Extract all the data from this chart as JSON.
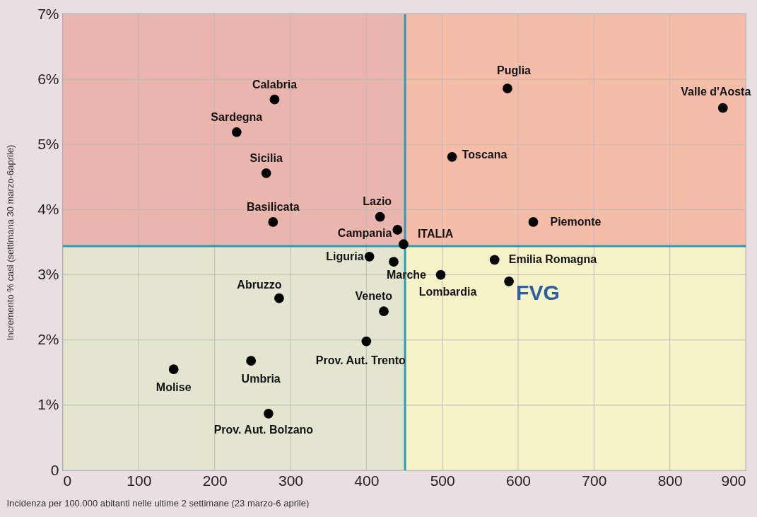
{
  "chart_data": {
    "type": "scatter",
    "xlabel": "Incidenza per 100.000 abitanti  nelle ultime 2 settimane (23 marzo-6 aprile)",
    "ylabel": "Incremento % casi (settimana 30 marzo-6aprile)",
    "x": [
      279,
      229,
      268,
      277,
      418,
      441,
      449,
      404,
      436,
      285,
      423,
      400,
      146,
      248,
      271,
      586,
      870,
      513,
      620,
      569,
      498,
      588
    ],
    "values": [
      5.69,
      5.19,
      4.56,
      3.81,
      3.89,
      3.69,
      3.47,
      3.28,
      3.2,
      2.64,
      2.44,
      1.98,
      1.55,
      1.68,
      0.87,
      5.86,
      5.56,
      4.81,
      3.81,
      3.23,
      3.0,
      2.9
    ],
    "color": "#000000",
    "marker": "circle",
    "xlim": [
      0,
      900
    ],
    "xticks": [
      0,
      100,
      200,
      300,
      400,
      500,
      600,
      700,
      800,
      900
    ],
    "ylim": [
      0,
      7
    ],
    "yticks": [
      {
        "value": 0,
        "label": "0"
      },
      {
        "value": 1,
        "label": "1%"
      },
      {
        "value": 2,
        "label": "2%"
      },
      {
        "value": 3,
        "label": "3%"
      },
      {
        "value": 4,
        "label": "4%"
      },
      {
        "value": 5,
        "label": "5%"
      },
      {
        "value": 6,
        "label": "6%"
      },
      {
        "value": 7,
        "label": "7%"
      }
    ],
    "grid": true,
    "bands": [
      {
        "axis": "x",
        "from": 0,
        "to": 451,
        "color": "#e3e5cf"
      },
      {
        "axis": "x",
        "from": 451,
        "to": 900,
        "color": "#f7f3c8"
      },
      {
        "axis": "y",
        "from": 3.44,
        "to": 7,
        "color": "#f27a80"
      }
    ],
    "ref_lines": [
      {
        "axis": "x",
        "value": 451,
        "color": "#2a9bb5"
      },
      {
        "axis": "y",
        "value": 3.44,
        "color": "#2a9bb5"
      }
    ],
    "annotations": [
      {
        "text": "Calabria",
        "x": 279,
        "y": 5.69
      },
      {
        "text": "Sardegna",
        "x": 229,
        "y": 5.19
      },
      {
        "text": "Sicilia",
        "x": 268,
        "y": 4.56
      },
      {
        "text": "Basilicata",
        "x": 277,
        "y": 3.81
      },
      {
        "text": "Lazio",
        "x": 418,
        "y": 3.89
      },
      {
        "text": "Campania",
        "x": 441,
        "y": 3.69
      },
      {
        "text": "ITALIA",
        "x": 449,
        "y": 3.47
      },
      {
        "text": "Liguria",
        "x": 404,
        "y": 3.28
      },
      {
        "text": "Marche",
        "x": 436,
        "y": 3.2
      },
      {
        "text": "Abruzzo",
        "x": 285,
        "y": 2.64
      },
      {
        "text": "Veneto",
        "x": 423,
        "y": 2.44
      },
      {
        "text": "Prov. Aut. Trento",
        "x": 400,
        "y": 1.98
      },
      {
        "text": "Molise",
        "x": 146,
        "y": 1.55
      },
      {
        "text": "Umbria",
        "x": 248,
        "y": 1.68
      },
      {
        "text": "Prov. Aut. Bolzano",
        "x": 271,
        "y": 0.87
      },
      {
        "text": "Puglia",
        "x": 586,
        "y": 5.86
      },
      {
        "text": "Valle d'Aosta",
        "x": 870,
        "y": 5.56
      },
      {
        "text": "Toscana",
        "x": 513,
        "y": 4.81
      },
      {
        "text": "Piemonte",
        "x": 620,
        "y": 3.81
      },
      {
        "text": "Emilia Romagna",
        "x": 569,
        "y": 3.23
      },
      {
        "text": "Lombardia",
        "x": 498,
        "y": 3.0
      },
      {
        "text": "FVG",
        "x": 588,
        "y": 2.9
      }
    ]
  }
}
